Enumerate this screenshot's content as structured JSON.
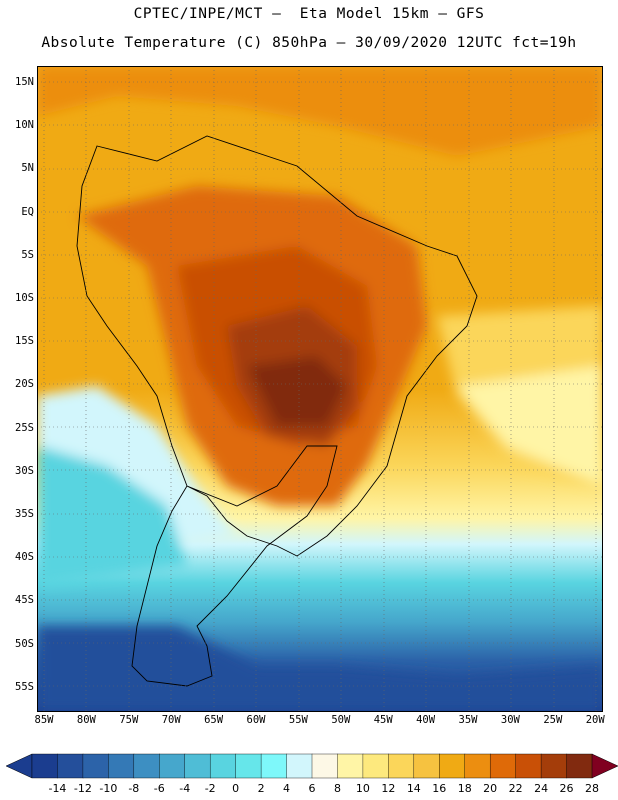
{
  "header": {
    "title_line1": "CPTEC/INPE/MCT –  Eta Model 15km – GFS",
    "title_line2": "Absolute Temperature (C) 850hPa – 30/09/2020 12UTC fct=19h"
  },
  "map": {
    "lat_labels": [
      "15N",
      "10N",
      "5N",
      "EQ",
      "5S",
      "10S",
      "15S",
      "20S",
      "25S",
      "30S",
      "35S",
      "40S",
      "45S",
      "50S",
      "55S"
    ],
    "lon_labels": [
      "85W",
      "80W",
      "75W",
      "70W",
      "65W",
      "60W",
      "55W",
      "50W",
      "45W",
      "40W",
      "35W",
      "30W",
      "25W",
      "20W"
    ]
  },
  "colorbar": {
    "labels": [
      "-14",
      "-12",
      "-10",
      "-8",
      "-6",
      "-4",
      "-2",
      "0",
      "2",
      "4",
      "6",
      "8",
      "10",
      "12",
      "14",
      "16",
      "18",
      "20",
      "22",
      "24",
      "26",
      "28"
    ],
    "colors": [
      "#1b3d8f",
      "#244f9b",
      "#2c63a9",
      "#3479b6",
      "#3d8fc2",
      "#46a7cc",
      "#4fbdd6",
      "#59d4e0",
      "#66e6ea",
      "#7ef8fa",
      "#d2f6fc",
      "#fdf8e6",
      "#fff5a6",
      "#fde97e",
      "#fbd65a",
      "#f6c240",
      "#f0aa14",
      "#ec8e10",
      "#df6a08",
      "#c95006",
      "#a43d0a",
      "#812a0f",
      "#6a1a10",
      "#800020"
    ],
    "low_color": "#1b3d8f",
    "high_color": "#800020"
  }
}
